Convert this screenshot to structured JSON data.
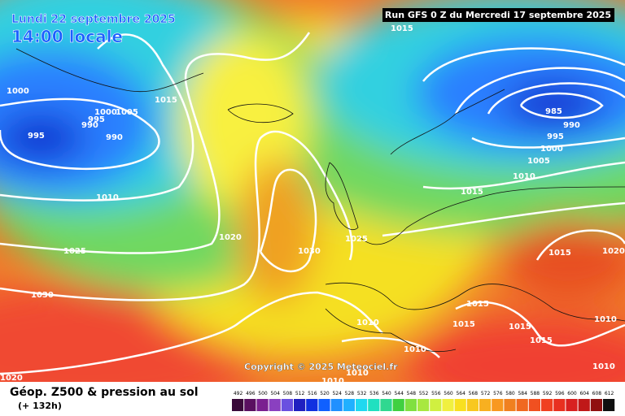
{
  "header": {
    "date": "Lundi 22 septembre 2025",
    "time": "14:00 locale",
    "run": "Run GFS 0 Z du Mercredi 17 septembre 2025"
  },
  "copyright": "Copyright © 2025 Meteociel.fr",
  "footer": {
    "title": "Géop. Z500 & pression au sol",
    "lead": "(+ 132h)"
  },
  "isobar_labels": [
    1015,
    1000,
    995,
    1000,
    1005,
    995,
    990,
    990,
    1015,
    1010,
    1025,
    1030,
    1020,
    1020,
    1030,
    1025,
    985,
    990,
    995,
    1000,
    1005,
    1010,
    1015,
    1015,
    1020,
    1015,
    1015,
    1015,
    1010,
    1010,
    1010,
    1015,
    1010,
    1010,
    1010
  ],
  "scale": {
    "labels": [
      492,
      496,
      500,
      504,
      508,
      512,
      516,
      520,
      524,
      528,
      532,
      536,
      540,
      544,
      548,
      552,
      556,
      560,
      564,
      568,
      572,
      576,
      580,
      584,
      588,
      592,
      596,
      600,
      604,
      608,
      612
    ],
    "colors": [
      "#3a0a3a",
      "#5a1060",
      "#7a2090",
      "#8a40c0",
      "#6a50e0",
      "#2020c0",
      "#1030e0",
      "#1060ff",
      "#2090ff",
      "#20b0ff",
      "#20d8f0",
      "#20e0c0",
      "#30d890",
      "#40d040",
      "#80e040",
      "#a8e840",
      "#d0f040",
      "#f0f040",
      "#f8e020",
      "#f8c820",
      "#f8b020",
      "#f89820",
      "#f08020",
      "#f06820",
      "#f05020",
      "#f04020",
      "#e83020",
      "#d82020",
      "#c01818",
      "#901010",
      "#101010"
    ]
  }
}
